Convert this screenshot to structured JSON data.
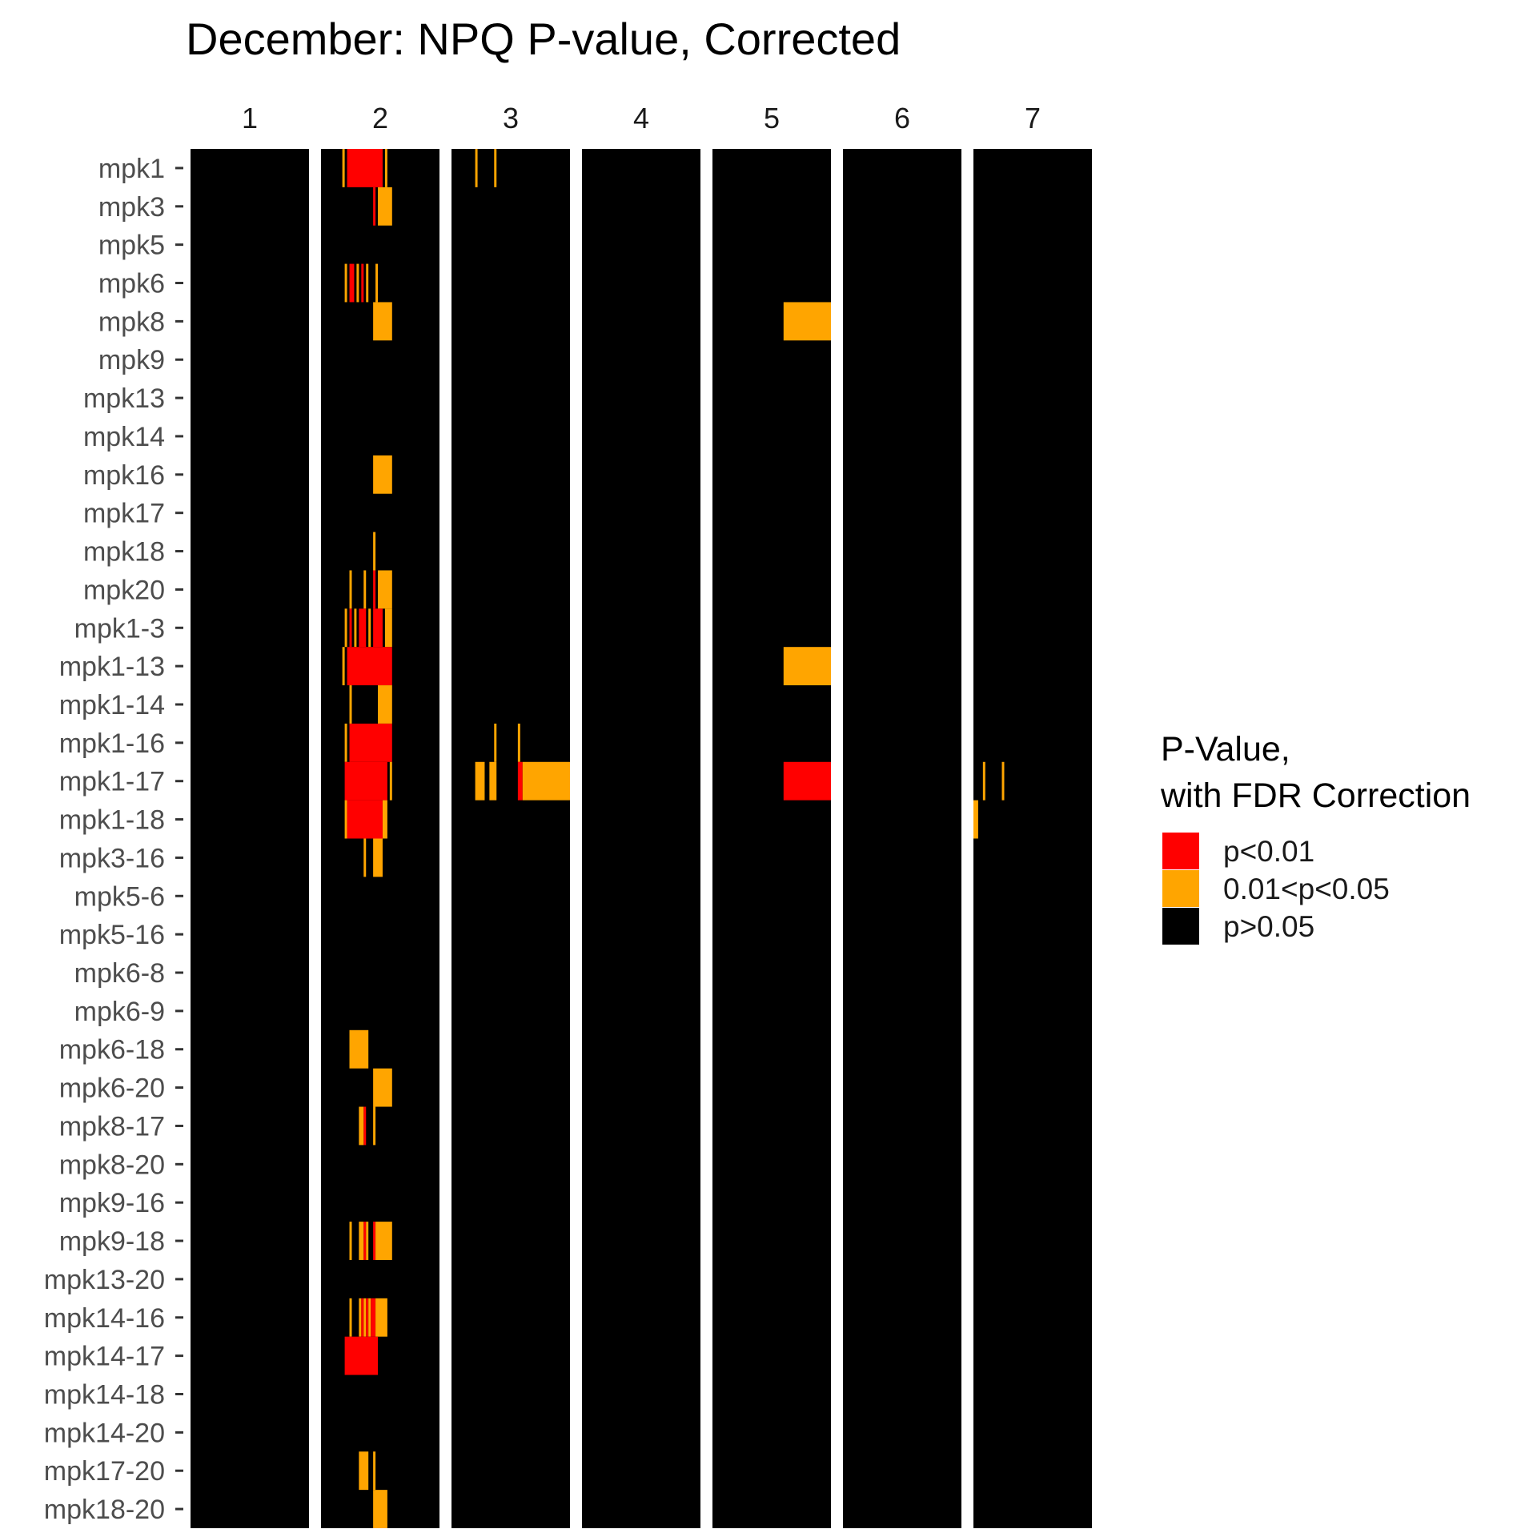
{
  "chart_data": {
    "type": "heatmap",
    "title": "December: NPQ P-value, Corrected",
    "facets": [
      "1",
      "2",
      "3",
      "4",
      "5",
      "6",
      "7"
    ],
    "rows": [
      "mpk1",
      "mpk3",
      "mpk5",
      "mpk6",
      "mpk8",
      "mpk9",
      "mpk13",
      "mpk14",
      "mpk16",
      "mpk17",
      "mpk18",
      "mpk20",
      "mpk1-3",
      "mpk1-13",
      "mpk1-14",
      "mpk1-16",
      "mpk1-17",
      "mpk1-18",
      "mpk3-16",
      "mpk5-6",
      "mpk5-16",
      "mpk6-8",
      "mpk6-9",
      "mpk6-18",
      "mpk6-20",
      "mpk8-17",
      "mpk8-20",
      "mpk9-16",
      "mpk9-18",
      "mpk13-20",
      "mpk14-16",
      "mpk14-17",
      "mpk14-18",
      "mpk14-20",
      "mpk17-20",
      "mpk18-20"
    ],
    "legend": {
      "title_lines": [
        "P-Value,",
        "with FDR Correction"
      ],
      "position": "right",
      "categories": [
        {
          "label": "p<0.01",
          "color": "#ff0000"
        },
        {
          "label": "0.01<p<0.05",
          "color": "#ffa500"
        },
        {
          "label": "p>0.05",
          "color": "#000000"
        }
      ]
    },
    "background_category": "p>0.05",
    "bins_per_facet": 50,
    "significant_cells": [
      {
        "row": "mpk1",
        "facet": "2",
        "from": 9,
        "to": 10,
        "category": "0.01<p<0.05"
      },
      {
        "row": "mpk1",
        "facet": "2",
        "from": 11,
        "to": 26,
        "category": "p<0.01"
      },
      {
        "row": "mpk1",
        "facet": "2",
        "from": 27,
        "to": 28,
        "category": "0.01<p<0.05"
      },
      {
        "row": "mpk1",
        "facet": "3",
        "from": 10,
        "to": 11,
        "category": "0.01<p<0.05"
      },
      {
        "row": "mpk1",
        "facet": "3",
        "from": 18,
        "to": 19,
        "category": "0.01<p<0.05"
      },
      {
        "row": "mpk3",
        "facet": "2",
        "from": 22,
        "to": 23,
        "category": "p<0.01"
      },
      {
        "row": "mpk3",
        "facet": "2",
        "from": 24,
        "to": 30,
        "category": "0.01<p<0.05"
      },
      {
        "row": "mpk6",
        "facet": "2",
        "from": 10,
        "to": 11,
        "category": "0.01<p<0.05"
      },
      {
        "row": "mpk6",
        "facet": "2",
        "from": 12,
        "to": 14,
        "category": "p<0.01"
      },
      {
        "row": "mpk6",
        "facet": "2",
        "from": 15,
        "to": 16,
        "category": "0.01<p<0.05"
      },
      {
        "row": "mpk6",
        "facet": "2",
        "from": 17,
        "to": 18,
        "category": "p<0.01"
      },
      {
        "row": "mpk6",
        "facet": "2",
        "from": 19,
        "to": 20,
        "category": "0.01<p<0.05"
      },
      {
        "row": "mpk6",
        "facet": "2",
        "from": 23,
        "to": 24,
        "category": "0.01<p<0.05"
      },
      {
        "row": "mpk8",
        "facet": "2",
        "from": 22,
        "to": 30,
        "category": "0.01<p<0.05"
      },
      {
        "row": "mpk8",
        "facet": "5",
        "from": 30,
        "to": 50,
        "category": "0.01<p<0.05"
      },
      {
        "row": "mpk16",
        "facet": "2",
        "from": 22,
        "to": 30,
        "category": "0.01<p<0.05"
      },
      {
        "row": "mpk18",
        "facet": "2",
        "from": 22,
        "to": 23,
        "category": "0.01<p<0.05"
      },
      {
        "row": "mpk20",
        "facet": "2",
        "from": 12,
        "to": 13,
        "category": "0.01<p<0.05"
      },
      {
        "row": "mpk20",
        "facet": "2",
        "from": 18,
        "to": 19,
        "category": "0.01<p<0.05"
      },
      {
        "row": "mpk20",
        "facet": "2",
        "from": 22,
        "to": 23,
        "category": "p<0.01"
      },
      {
        "row": "mpk20",
        "facet": "2",
        "from": 24,
        "to": 30,
        "category": "0.01<p<0.05"
      },
      {
        "row": "mpk1-3",
        "facet": "2",
        "from": 10,
        "to": 11,
        "category": "0.01<p<0.05"
      },
      {
        "row": "mpk1-3",
        "facet": "2",
        "from": 12,
        "to": 13,
        "category": "p<0.01"
      },
      {
        "row": "mpk1-3",
        "facet": "2",
        "from": 14,
        "to": 15,
        "category": "0.01<p<0.05"
      },
      {
        "row": "mpk1-3",
        "facet": "2",
        "from": 16,
        "to": 19,
        "category": "p<0.01"
      },
      {
        "row": "mpk1-3",
        "facet": "2",
        "from": 20,
        "to": 21,
        "category": "0.01<p<0.05"
      },
      {
        "row": "mpk1-3",
        "facet": "2",
        "from": 22,
        "to": 26,
        "category": "p<0.01"
      },
      {
        "row": "mpk1-3",
        "facet": "2",
        "from": 27,
        "to": 30,
        "category": "0.01<p<0.05"
      },
      {
        "row": "mpk1-13",
        "facet": "2",
        "from": 9,
        "to": 10,
        "category": "0.01<p<0.05"
      },
      {
        "row": "mpk1-13",
        "facet": "2",
        "from": 11,
        "to": 30,
        "category": "p<0.01"
      },
      {
        "row": "mpk1-13",
        "facet": "5",
        "from": 30,
        "to": 50,
        "category": "0.01<p<0.05"
      },
      {
        "row": "mpk1-14",
        "facet": "2",
        "from": 12,
        "to": 13,
        "category": "0.01<p<0.05"
      },
      {
        "row": "mpk1-14",
        "facet": "2",
        "from": 24,
        "to": 30,
        "category": "0.01<p<0.05"
      },
      {
        "row": "mpk1-16",
        "facet": "2",
        "from": 10,
        "to": 11,
        "category": "0.01<p<0.05"
      },
      {
        "row": "mpk1-16",
        "facet": "2",
        "from": 12,
        "to": 30,
        "category": "p<0.01"
      },
      {
        "row": "mpk1-16",
        "facet": "3",
        "from": 18,
        "to": 19,
        "category": "0.01<p<0.05"
      },
      {
        "row": "mpk1-16",
        "facet": "3",
        "from": 28,
        "to": 29,
        "category": "0.01<p<0.05"
      },
      {
        "row": "mpk1-17",
        "facet": "2",
        "from": 10,
        "to": 28,
        "category": "p<0.01"
      },
      {
        "row": "mpk1-17",
        "facet": "2",
        "from": 29,
        "to": 30,
        "category": "0.01<p<0.05"
      },
      {
        "row": "mpk1-17",
        "facet": "3",
        "from": 10,
        "to": 14,
        "category": "0.01<p<0.05"
      },
      {
        "row": "mpk1-17",
        "facet": "3",
        "from": 16,
        "to": 19,
        "category": "0.01<p<0.05"
      },
      {
        "row": "mpk1-17",
        "facet": "3",
        "from": 28,
        "to": 30,
        "category": "p<0.01"
      },
      {
        "row": "mpk1-17",
        "facet": "3",
        "from": 30,
        "to": 50,
        "category": "0.01<p<0.05"
      },
      {
        "row": "mpk1-17",
        "facet": "5",
        "from": 30,
        "to": 50,
        "category": "p<0.01"
      },
      {
        "row": "mpk1-17",
        "facet": "7",
        "from": 4,
        "to": 5,
        "category": "0.01<p<0.05"
      },
      {
        "row": "mpk1-17",
        "facet": "7",
        "from": 12,
        "to": 13,
        "category": "0.01<p<0.05"
      },
      {
        "row": "mpk1-18",
        "facet": "2",
        "from": 10,
        "to": 11,
        "category": "0.01<p<0.05"
      },
      {
        "row": "mpk1-18",
        "facet": "2",
        "from": 11,
        "to": 26,
        "category": "p<0.01"
      },
      {
        "row": "mpk1-18",
        "facet": "2",
        "from": 26,
        "to": 28,
        "category": "0.01<p<0.05"
      },
      {
        "row": "mpk1-18",
        "facet": "7",
        "from": 0,
        "to": 2,
        "category": "0.01<p<0.05"
      },
      {
        "row": "mpk3-16",
        "facet": "2",
        "from": 18,
        "to": 19,
        "category": "0.01<p<0.05"
      },
      {
        "row": "mpk3-16",
        "facet": "2",
        "from": 22,
        "to": 26,
        "category": "0.01<p<0.05"
      },
      {
        "row": "mpk6-18",
        "facet": "2",
        "from": 12,
        "to": 20,
        "category": "0.01<p<0.05"
      },
      {
        "row": "mpk6-20",
        "facet": "2",
        "from": 22,
        "to": 30,
        "category": "0.01<p<0.05"
      },
      {
        "row": "mpk8-17",
        "facet": "2",
        "from": 16,
        "to": 18,
        "category": "0.01<p<0.05"
      },
      {
        "row": "mpk8-17",
        "facet": "2",
        "from": 18,
        "to": 19,
        "category": "p<0.01"
      },
      {
        "row": "mpk8-17",
        "facet": "2",
        "from": 22,
        "to": 23,
        "category": "0.01<p<0.05"
      },
      {
        "row": "mpk9-18",
        "facet": "2",
        "from": 12,
        "to": 13,
        "category": "0.01<p<0.05"
      },
      {
        "row": "mpk9-18",
        "facet": "2",
        "from": 16,
        "to": 18,
        "category": "0.01<p<0.05"
      },
      {
        "row": "mpk9-18",
        "facet": "2",
        "from": 18,
        "to": 19,
        "category": "p<0.01"
      },
      {
        "row": "mpk9-18",
        "facet": "2",
        "from": 19,
        "to": 20,
        "category": "0.01<p<0.05"
      },
      {
        "row": "mpk9-18",
        "facet": "2",
        "from": 22,
        "to": 23,
        "category": "p<0.01"
      },
      {
        "row": "mpk9-18",
        "facet": "2",
        "from": 23,
        "to": 30,
        "category": "0.01<p<0.05"
      },
      {
        "row": "mpk14-16",
        "facet": "2",
        "from": 12,
        "to": 13,
        "category": "0.01<p<0.05"
      },
      {
        "row": "mpk14-16",
        "facet": "2",
        "from": 16,
        "to": 17,
        "category": "0.01<p<0.05"
      },
      {
        "row": "mpk14-16",
        "facet": "2",
        "from": 17,
        "to": 18,
        "category": "p<0.01"
      },
      {
        "row": "mpk14-16",
        "facet": "2",
        "from": 18,
        "to": 19,
        "category": "0.01<p<0.05"
      },
      {
        "row": "mpk14-16",
        "facet": "2",
        "from": 19,
        "to": 20,
        "category": "p<0.01"
      },
      {
        "row": "mpk14-16",
        "facet": "2",
        "from": 20,
        "to": 21,
        "category": "0.01<p<0.05"
      },
      {
        "row": "mpk14-16",
        "facet": "2",
        "from": 21,
        "to": 23,
        "category": "p<0.01"
      },
      {
        "row": "mpk14-16",
        "facet": "2",
        "from": 23,
        "to": 28,
        "category": "0.01<p<0.05"
      },
      {
        "row": "mpk14-17",
        "facet": "2",
        "from": 10,
        "to": 24,
        "category": "p<0.01"
      },
      {
        "row": "mpk17-20",
        "facet": "2",
        "from": 16,
        "to": 20,
        "category": "0.01<p<0.05"
      },
      {
        "row": "mpk17-20",
        "facet": "2",
        "from": 22,
        "to": 23,
        "category": "0.01<p<0.05"
      },
      {
        "row": "mpk18-20",
        "facet": "2",
        "from": 22,
        "to": 28,
        "category": "0.01<p<0.05"
      }
    ]
  }
}
